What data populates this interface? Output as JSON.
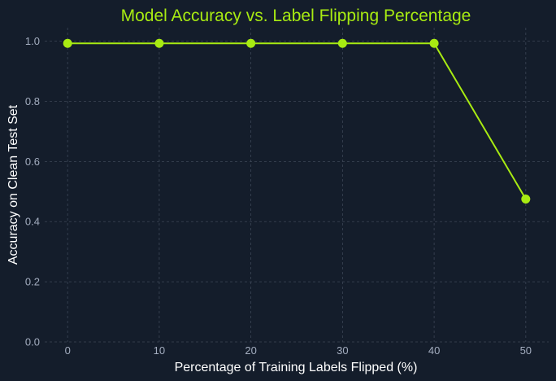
{
  "chart_data": {
    "type": "line",
    "title": "Model Accuracy vs. Label Flipping Percentage",
    "xlabel": "Percentage of Training Labels Flipped (%)",
    "ylabel": "Accuracy on Clean Test Set",
    "x": [
      0,
      10,
      20,
      30,
      40,
      50
    ],
    "series": [
      {
        "values": [
          0.993,
          0.993,
          0.993,
          0.993,
          0.993,
          0.475
        ]
      }
    ],
    "xticks": [
      "0",
      "10",
      "20",
      "30",
      "40",
      "50"
    ],
    "yticks": [
      "0.0",
      "0.2",
      "0.4",
      "0.6",
      "0.8",
      "1.0"
    ],
    "xlim": [
      -2.5,
      52.5
    ],
    "ylim": [
      0.0,
      1.045
    ],
    "grid": true,
    "markers": true
  },
  "colors": {
    "background": "#141d2b",
    "line": "#a8eb12",
    "marker": "#a8eb12",
    "title": "#a8eb12",
    "label": "#ffffff",
    "tick": "#a3adbf",
    "grid": "#3c4656"
  }
}
